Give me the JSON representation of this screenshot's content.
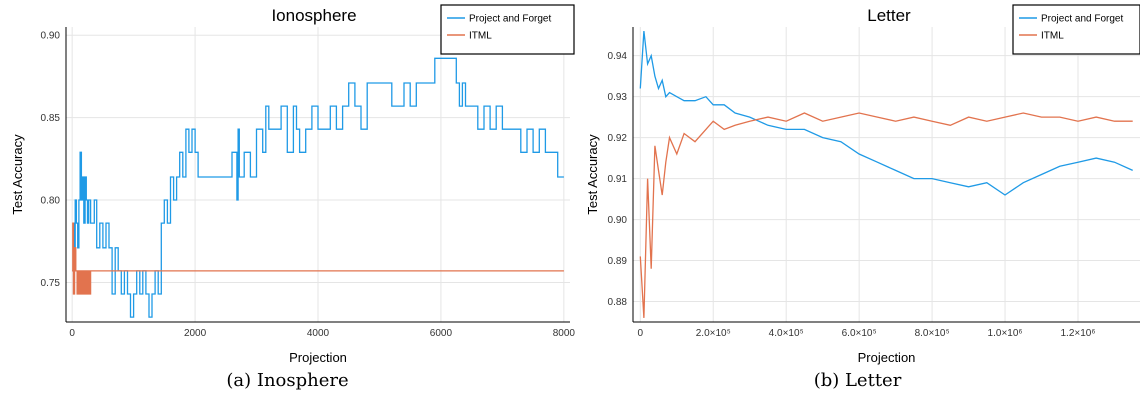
{
  "captions": {
    "a": "(a) Inosphere",
    "b": "(b) Letter"
  },
  "colors": {
    "project_and_forget": "#1f9ae6",
    "itml": "#e2734e"
  },
  "chart_data": [
    {
      "type": "line",
      "title": "Ionosphere",
      "xlabel": "Projection",
      "ylabel": "Test Accuracy",
      "xlim": [
        -100,
        8100
      ],
      "ylim": [
        0.726,
        0.905
      ],
      "xticks": [
        0,
        2000,
        4000,
        6000,
        8000
      ],
      "xtick_labels": [
        "0",
        "2000",
        "4000",
        "6000",
        "8000"
      ],
      "yticks": [
        0.75,
        0.8,
        0.85,
        0.9
      ],
      "ytick_labels": [
        "0.75",
        "0.80",
        "0.85",
        "0.90"
      ],
      "grid": true,
      "legend": "top-right",
      "series": [
        {
          "name": "Project and Forget",
          "color_key": "project_and_forget",
          "x": [
            0,
            20,
            30,
            50,
            70,
            90,
            110,
            130,
            150,
            170,
            190,
            210,
            230,
            250,
            270,
            300,
            330,
            360,
            400,
            450,
            500,
            550,
            600,
            650,
            700,
            750,
            800,
            850,
            900,
            950,
            1000,
            1050,
            1100,
            1150,
            1200,
            1250,
            1300,
            1350,
            1400,
            1450,
            1500,
            1550,
            1600,
            1650,
            1700,
            1750,
            1800,
            1850,
            1900,
            1950,
            2000,
            2050,
            2200,
            2400,
            2600,
            2680,
            2700,
            2720,
            2800,
            2900,
            3000,
            3100,
            3150,
            3200,
            3300,
            3400,
            3500,
            3600,
            3650,
            3700,
            3800,
            3900,
            4000,
            4100,
            4200,
            4300,
            4400,
            4500,
            4600,
            4700,
            4800,
            5000,
            5200,
            5400,
            5500,
            5600,
            5800,
            5900,
            6000,
            6100,
            6200,
            6250,
            6300,
            6350,
            6400,
            6600,
            6700,
            6800,
            6900,
            7000,
            7200,
            7300,
            7400,
            7500,
            7600,
            7700,
            7800,
            7900,
            8000
          ],
          "y": [
            0.757,
            0.786,
            0.771,
            0.8,
            0.786,
            0.771,
            0.8,
            0.829,
            0.8,
            0.814,
            0.786,
            0.814,
            0.8,
            0.786,
            0.8,
            0.786,
            0.786,
            0.8,
            0.771,
            0.786,
            0.771,
            0.786,
            0.771,
            0.743,
            0.771,
            0.757,
            0.743,
            0.757,
            0.743,
            0.729,
            0.743,
            0.757,
            0.743,
            0.757,
            0.743,
            0.729,
            0.743,
            0.757,
            0.743,
            0.786,
            0.8,
            0.786,
            0.814,
            0.8,
            0.814,
            0.829,
            0.814,
            0.843,
            0.829,
            0.843,
            0.829,
            0.814,
            0.814,
            0.814,
            0.829,
            0.8,
            0.843,
            0.814,
            0.829,
            0.814,
            0.843,
            0.829,
            0.857,
            0.843,
            0.843,
            0.857,
            0.829,
            0.857,
            0.843,
            0.829,
            0.843,
            0.857,
            0.843,
            0.843,
            0.857,
            0.843,
            0.857,
            0.871,
            0.857,
            0.843,
            0.871,
            0.871,
            0.857,
            0.871,
            0.857,
            0.871,
            0.871,
            0.886,
            0.886,
            0.886,
            0.886,
            0.871,
            0.857,
            0.871,
            0.857,
            0.843,
            0.857,
            0.843,
            0.857,
            0.843,
            0.843,
            0.829,
            0.843,
            0.829,
            0.843,
            0.829,
            0.829,
            0.814,
            0.814
          ]
        },
        {
          "name": "ITML",
          "color_key": "itml",
          "x": [
            0,
            10,
            20,
            40,
            60,
            80,
            100,
            120,
            140,
            160,
            180,
            200,
            220,
            240,
            260,
            280,
            300,
            350,
            8000
          ],
          "y": [
            0.757,
            0.786,
            0.743,
            0.771,
            0.757,
            0.743,
            0.757,
            0.743,
            0.757,
            0.743,
            0.757,
            0.743,
            0.757,
            0.743,
            0.757,
            0.743,
            0.757,
            0.757,
            0.757
          ]
        }
      ]
    },
    {
      "type": "line",
      "title": "Letter",
      "xlabel": "Projection",
      "ylabel": "Test Accuracy",
      "xlim": [
        -20000,
        1370000
      ],
      "ylim": [
        0.875,
        0.947
      ],
      "xticks": [
        0,
        200000,
        400000,
        600000,
        800000,
        1000000,
        1200000
      ],
      "xtick_labels": [
        "0",
        "2.0×10⁵",
        "4.0×10⁵",
        "6.0×10⁵",
        "8.0×10⁵",
        "1.0×10⁶",
        "1.2×10⁶"
      ],
      "yticks": [
        0.88,
        0.89,
        0.9,
        0.91,
        0.92,
        0.93,
        0.94
      ],
      "ytick_labels": [
        "0.88",
        "0.89",
        "0.90",
        "0.91",
        "0.92",
        "0.93",
        "0.94"
      ],
      "grid": true,
      "legend": "top-right",
      "series": [
        {
          "name": "Project and Forget",
          "color_key": "project_and_forget",
          "x": [
            0,
            10000,
            20000,
            30000,
            40000,
            50000,
            60000,
            70000,
            80000,
            100000,
            120000,
            150000,
            180000,
            200000,
            230000,
            260000,
            300000,
            350000,
            400000,
            450000,
            500000,
            550000,
            600000,
            650000,
            700000,
            750000,
            800000,
            850000,
            900000,
            950000,
            1000000,
            1050000,
            1100000,
            1150000,
            1200000,
            1250000,
            1300000,
            1350000
          ],
          "y": [
            0.932,
            0.946,
            0.938,
            0.94,
            0.935,
            0.932,
            0.934,
            0.93,
            0.931,
            0.93,
            0.929,
            0.929,
            0.93,
            0.928,
            0.928,
            0.926,
            0.925,
            0.923,
            0.922,
            0.922,
            0.92,
            0.919,
            0.916,
            0.914,
            0.912,
            0.91,
            0.91,
            0.909,
            0.908,
            0.909,
            0.906,
            0.909,
            0.911,
            0.913,
            0.914,
            0.915,
            0.914,
            0.912
          ]
        },
        {
          "name": "ITML",
          "color_key": "itml",
          "x": [
            0,
            10000,
            20000,
            30000,
            40000,
            50000,
            60000,
            70000,
            80000,
            100000,
            120000,
            150000,
            180000,
            200000,
            230000,
            260000,
            300000,
            350000,
            400000,
            450000,
            500000,
            550000,
            600000,
            650000,
            700000,
            750000,
            800000,
            850000,
            900000,
            950000,
            1000000,
            1050000,
            1100000,
            1150000,
            1200000,
            1250000,
            1300000,
            1350000
          ],
          "y": [
            0.891,
            0.876,
            0.91,
            0.888,
            0.918,
            0.912,
            0.906,
            0.914,
            0.92,
            0.916,
            0.921,
            0.919,
            0.922,
            0.924,
            0.922,
            0.923,
            0.924,
            0.925,
            0.924,
            0.926,
            0.924,
            0.925,
            0.926,
            0.925,
            0.924,
            0.925,
            0.924,
            0.923,
            0.925,
            0.924,
            0.925,
            0.926,
            0.925,
            0.925,
            0.924,
            0.925,
            0.924,
            0.924
          ]
        }
      ]
    }
  ]
}
